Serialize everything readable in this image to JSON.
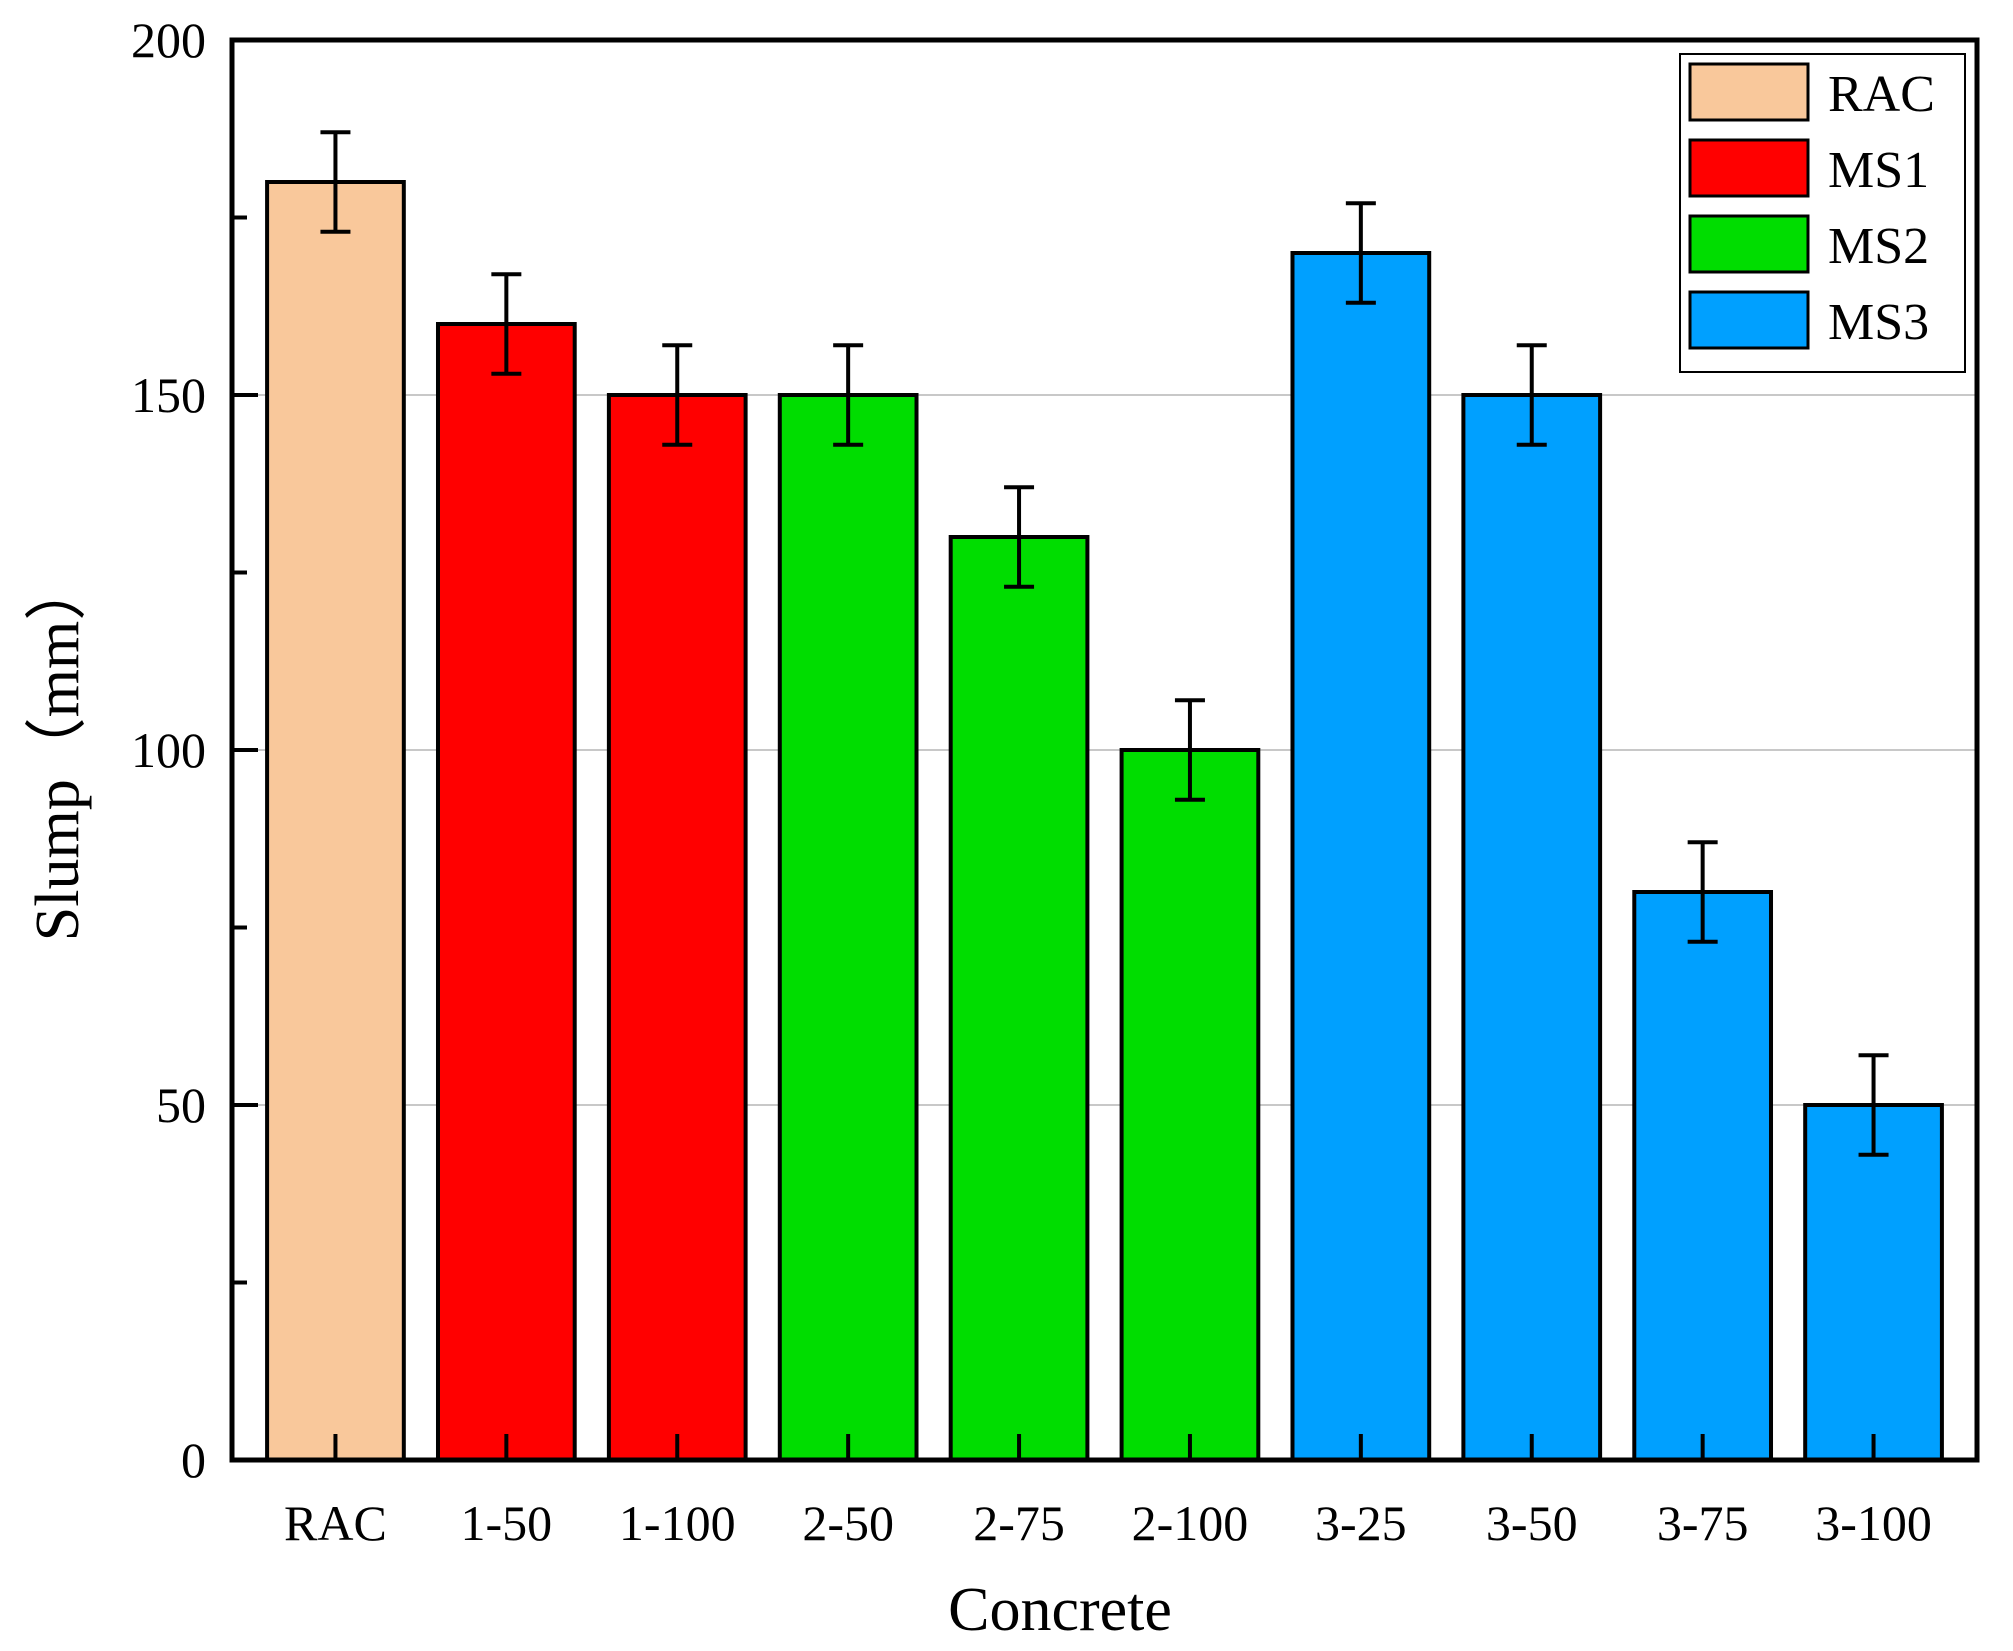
{
  "chart_data": {
    "type": "bar",
    "title": "",
    "xlabel": "Concrete",
    "ylabel": "Slump（mm）",
    "ylim": [
      0,
      200
    ],
    "yticks": [
      "0",
      "50",
      "100",
      "150",
      "200"
    ],
    "grid": true,
    "legend_position": "top-right",
    "categories": [
      "RAC",
      "1-50",
      "1-100",
      "2-50",
      "2-75",
      "2-100",
      "3-25",
      "3-50",
      "3-75",
      "3-100"
    ],
    "values": [
      180,
      160,
      150,
      150,
      130,
      100,
      170,
      150,
      80,
      50
    ],
    "errors": [
      7,
      7,
      7,
      7,
      7,
      7,
      7,
      7,
      7,
      7
    ],
    "groups": [
      "RAC",
      "MS1",
      "MS1",
      "MS2",
      "MS2",
      "MS2",
      "MS3",
      "MS3",
      "MS3",
      "MS3"
    ],
    "series": [
      {
        "name": "RAC",
        "color": "#F9C89B"
      },
      {
        "name": "MS1",
        "color": "#FF0000"
      },
      {
        "name": "MS2",
        "color": "#00DD00"
      },
      {
        "name": "MS3",
        "color": "#00A0FF"
      }
    ]
  }
}
